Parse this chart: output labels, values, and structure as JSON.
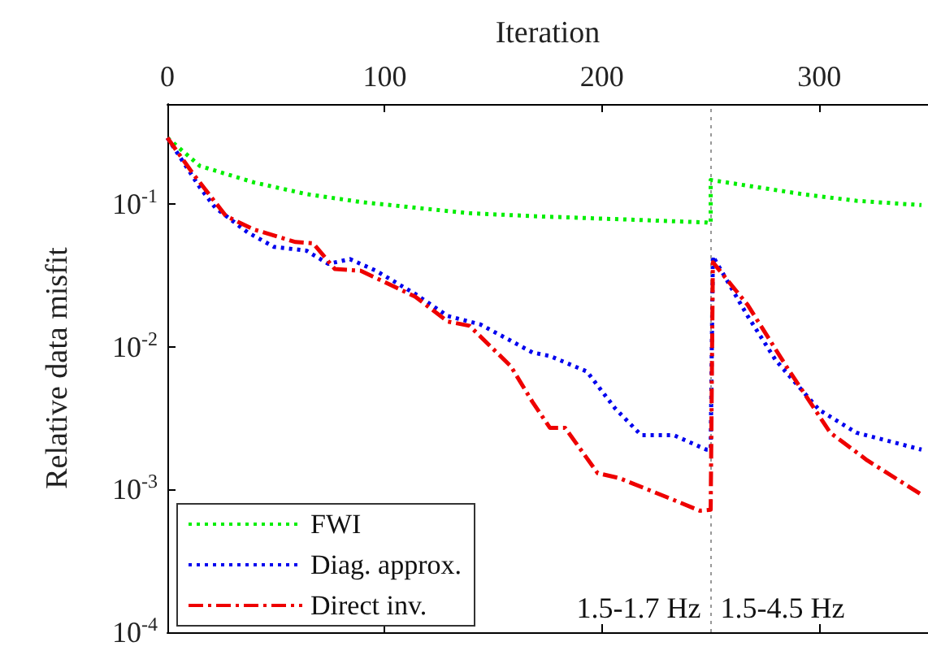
{
  "chart_data": {
    "type": "line",
    "xlabel": "Iteration",
    "ylabel": "Relative data misfit",
    "xlim": [
      0,
      350
    ],
    "xticks": [
      0,
      100,
      200,
      300
    ],
    "ylim": [
      0.0001,
      0.5
    ],
    "yticks": [
      {
        "value": 0.0001,
        "label": "10$^{-4}$"
      },
      {
        "value": 0.001,
        "label": "10$^{-3}$"
      },
      {
        "value": 0.01,
        "label": "10$^{-2}$"
      },
      {
        "value": 0.1,
        "label": "10$^{-1}$"
      }
    ],
    "log": "y",
    "grid": false,
    "legend": "bottom left",
    "marker": "none",
    "series": [
      {
        "name": "FWI",
        "color": "#00ee00",
        "line_style": "dotted",
        "x": [
          0,
          15,
          40,
          64,
          89,
          114,
          139,
          168,
          218,
          248,
          250,
          250,
          267,
          292,
          317,
          347
        ],
        "values": [
          0.29,
          0.184,
          0.141,
          0.117,
          0.103,
          0.094,
          0.086,
          0.082,
          0.077,
          0.074,
          0.073,
          0.147,
          0.134,
          0.117,
          0.105,
          0.098
        ]
      },
      {
        "name": "Diag. approx.",
        "color": "#0000ee",
        "line_style": "dotted",
        "x": [
          0,
          8.5,
          15,
          22,
          37,
          49,
          64,
          74,
          84,
          96,
          114,
          129,
          144,
          158,
          168,
          176,
          193,
          206,
          218,
          233,
          248,
          250,
          251,
          267,
          280,
          300,
          317,
          347
        ],
        "values": [
          0.29,
          0.184,
          0.13,
          0.094,
          0.063,
          0.05,
          0.047,
          0.038,
          0.041,
          0.034,
          0.0234,
          0.0164,
          0.0143,
          0.011,
          0.0091,
          0.0086,
          0.0067,
          0.0037,
          0.0024,
          0.0024,
          0.0019,
          0.0019,
          0.043,
          0.0164,
          0.008,
          0.0036,
          0.0025,
          0.0019
        ]
      },
      {
        "name": "Direct inv.",
        "color": "#ee0000",
        "line_style": "dashed",
        "x": [
          0,
          12,
          27,
          40,
          59,
          67,
          77,
          89,
          114,
          129,
          139,
          158,
          168,
          176,
          183,
          198,
          208,
          230,
          245,
          250,
          251,
          267,
          285,
          305,
          322,
          347
        ],
        "values": [
          0.29,
          0.161,
          0.082,
          0.066,
          0.054,
          0.053,
          0.035,
          0.034,
          0.0224,
          0.015,
          0.014,
          0.0073,
          0.0041,
          0.0027,
          0.0027,
          0.0013,
          0.0012,
          0.00088,
          0.00071,
          0.00072,
          0.039,
          0.0196,
          0.0072,
          0.0025,
          0.0016,
          0.00092
        ]
      }
    ],
    "ref_lines": [
      {
        "axis": "x",
        "value": 250,
        "color": "#999999",
        "line_style": "dotted"
      }
    ],
    "annotations": [
      "1.5-1.7 Hz",
      "1.5-4.5 Hz"
    ]
  }
}
